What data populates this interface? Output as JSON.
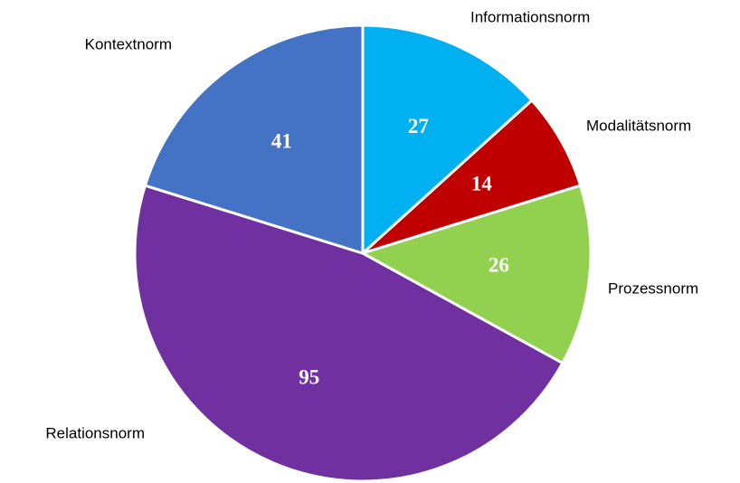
{
  "chart_data": {
    "type": "pie",
    "categories": [
      "Informationsnorm",
      "Modalitätsnorm",
      "Prozessnorm",
      "Relationsnorm",
      "Kontextnorm"
    ],
    "values": [
      27,
      14,
      26,
      95,
      41
    ],
    "colors": [
      "#00b0f0",
      "#c00000",
      "#92d050",
      "#7030a0",
      "#4472c4"
    ]
  }
}
